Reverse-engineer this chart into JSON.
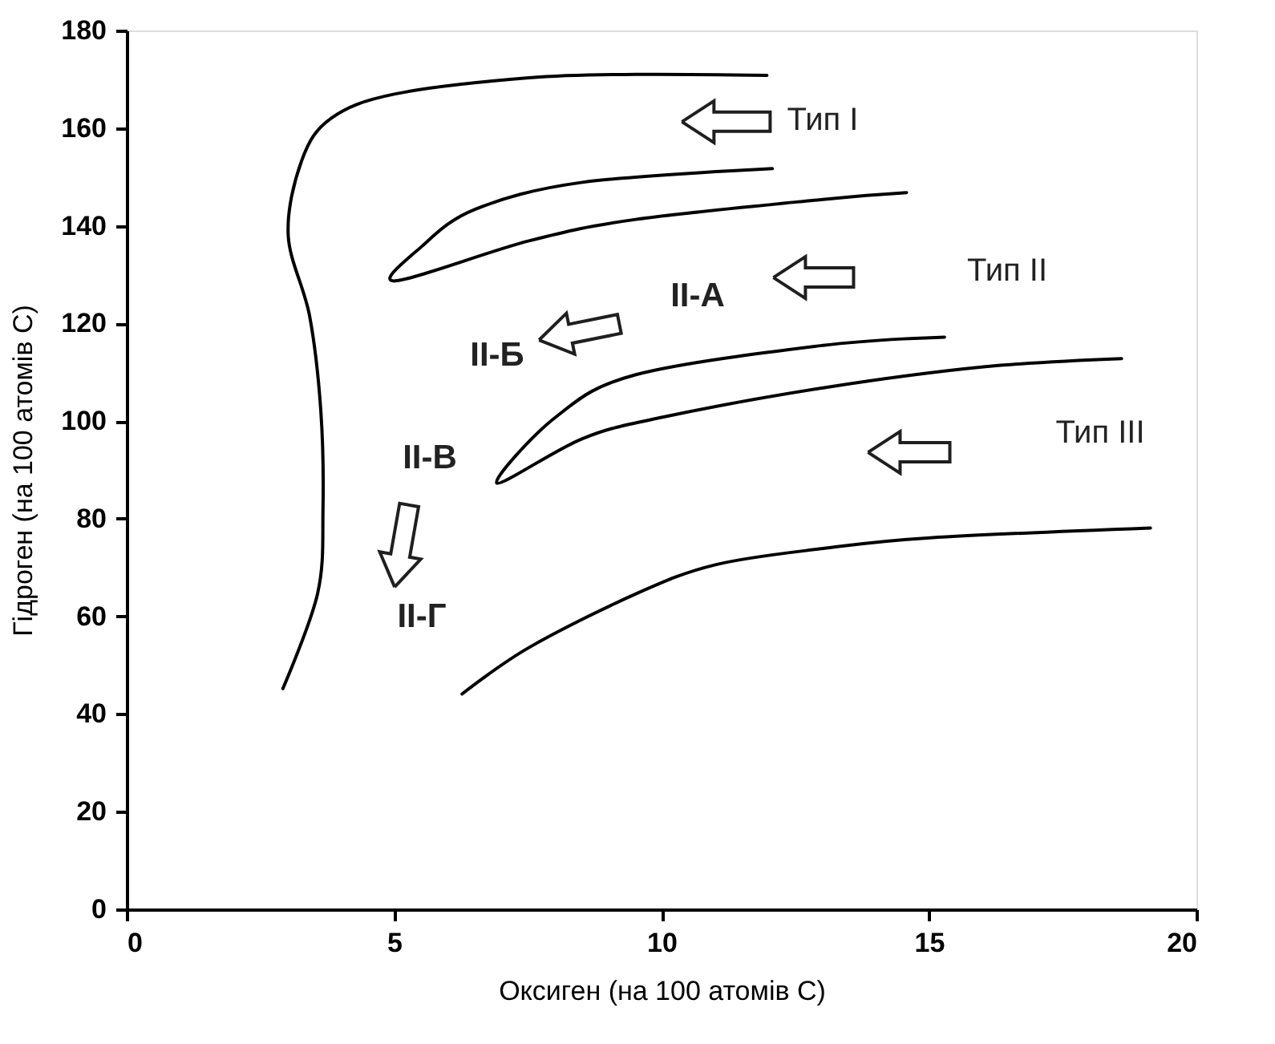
{
  "chart_data": {
    "type": "line",
    "xlabel": "Оксиген (на 100 атомів С)",
    "ylabel": "Гідроген (на 100 атомів С)",
    "xlim": [
      0,
      20
    ],
    "ylim": [
      0,
      180
    ],
    "xticks": [
      0,
      5,
      10,
      15,
      20
    ],
    "yticks": [
      0,
      20,
      40,
      60,
      80,
      100,
      120,
      140,
      160,
      180
    ],
    "grid": false,
    "legend": false,
    "marker": "none",
    "line_style": "solid",
    "series": [
      {
        "color": "#000000",
        "x": [
          11.97,
          9.51,
          7.52,
          5.02,
          3.82,
          3.27,
          3.02,
          3.42,
          3.63,
          3.67,
          3.57,
          2.92
        ],
        "values": [
          170.8,
          171,
          170.3,
          167,
          162,
          153.3,
          138,
          121.5,
          102,
          82,
          64.7,
          45.2
        ]
      },
      {
        "color": "#000000",
        "x": [
          12.07,
          8.52,
          6.52,
          5.52,
          5.02,
          7.52,
          9.52,
          13.02,
          14.58
        ],
        "values": [
          151.7,
          148.9,
          143.4,
          135.8,
          128.7,
          136.9,
          141.3,
          145.4,
          146.8
        ]
      },
      {
        "color": "#000000",
        "x": [
          15.29,
          13.02,
          9.52,
          8.02,
          6.92,
          8.52,
          10.02,
          13.02,
          16.02,
          18.6
        ],
        "values": [
          117.2,
          115.5,
          109.5,
          100.8,
          87.3,
          96.4,
          100.8,
          106.8,
          111.1,
          112.8
        ]
      },
      {
        "color": "#000000",
        "x": [
          6.27,
          7.52,
          9.52,
          11.02,
          13.02,
          15.02,
          19.14
        ],
        "values": [
          44.1,
          53.6,
          64.6,
          70.6,
          73.9,
          76.1,
          78.1
        ]
      }
    ],
    "annotations": [
      "Тип I",
      "Тип II",
      "Тип III",
      "II-А",
      "II-Б",
      "II-В",
      "II-Г"
    ]
  }
}
